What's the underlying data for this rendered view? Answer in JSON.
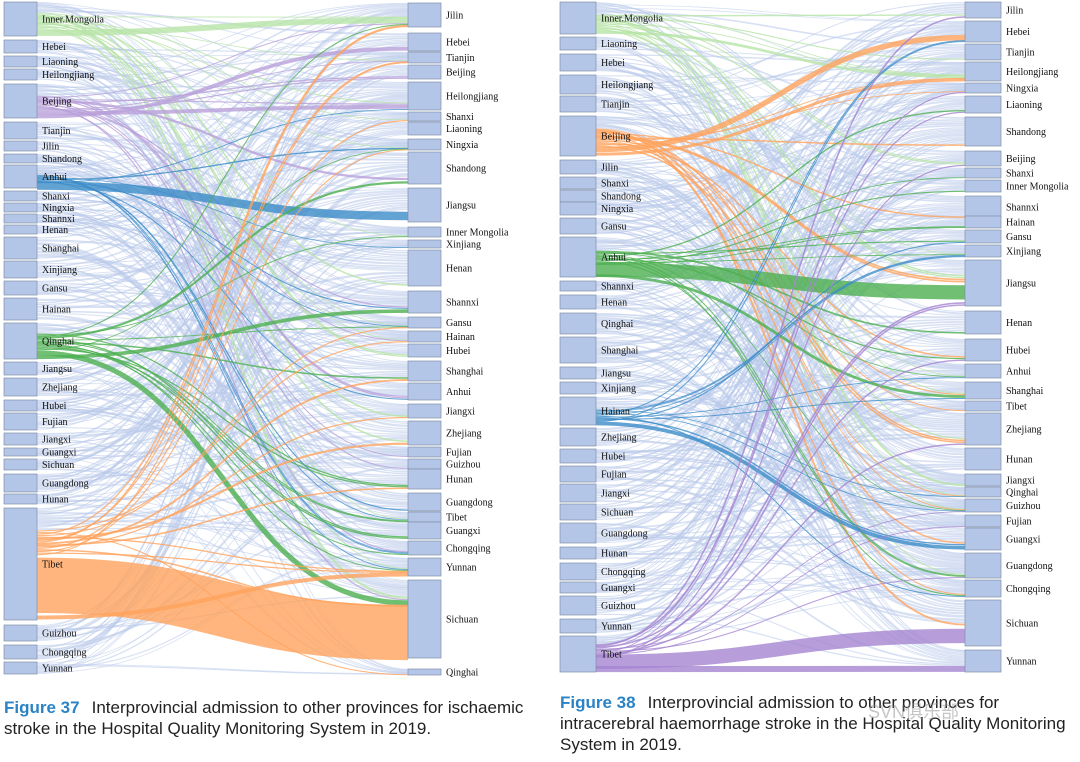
{
  "figure37": {
    "number": "Figure 37",
    "caption": "Interprovincial admission to other provinces for ischaemic stroke in the Hospital Quality Monitoring System in 2019.",
    "left_nodes": [
      "Inner.Mongolia",
      "Hebei",
      "Liaoning",
      "Heilongjiang",
      "Beijing",
      "Tianjin",
      "Jilin",
      "Shandong",
      "Anhui",
      "Shanxi",
      "Ningxia",
      "Shannxi",
      "Henan",
      "Shanghai",
      "Xinjiang",
      "Gansu",
      "Hainan",
      "Qinghai",
      "Jiangsu",
      "Zhejiang",
      "Hubei",
      "Fujian",
      "Jiangxi",
      "Guangxi",
      "Sichuan",
      "Guangdong",
      "Hunan",
      "Tibet",
      "Guizhou",
      "Chongqing",
      "Yunnan"
    ],
    "right_nodes": [
      "Jilin",
      "Hebei",
      "Tianjin",
      "Beijing",
      "Heilongjiang",
      "Shanxi",
      "Liaoning",
      "Ningxia",
      "Shandong",
      "Jiangsu",
      "Inner Mongolia",
      "Xinjiang",
      "Henan",
      "Shannxi",
      "Gansu",
      "Hainan",
      "Hubei",
      "Shanghai",
      "Anhui",
      "Jiangxi",
      "Zhejiang",
      "Fujian",
      "Guizhou",
      "Hunan",
      "Guangdong",
      "Tibet",
      "Guangxi",
      "Chongqing",
      "Yunnan",
      "Sichuan",
      "Qinghai"
    ]
  },
  "figure38": {
    "number": "Figure 38",
    "caption": "Interprovincial admission to other provinces for intracerebral haemorrhage stroke in the Hospital Quality Monitoring System in 2019.",
    "left_nodes": [
      "Inner.Mongolia",
      "Liaoning",
      "Hebei",
      "Heilongjiang",
      "Tianjin",
      "Beijing",
      "Jilin",
      "Shanxi",
      "Shandong",
      "Ningxia",
      "Gansu",
      "Anhui",
      "Shannxi",
      "Henan",
      "Qinghai",
      "Shanghai",
      "Jiangsu",
      "Xinjiang",
      "Hainan",
      "Zhejiang",
      "Hubei",
      "Fujian",
      "Jiangxi",
      "Sichuan",
      "Guangdong",
      "Hunan",
      "Chongqing",
      "Guangxi",
      "Guizhou",
      "Yunnan",
      "Tibet"
    ],
    "right_nodes": [
      "Jilin",
      "Hebei",
      "Tianjin",
      "Heilongjiang",
      "Ningxia",
      "Liaoning",
      "Shandong",
      "Beijing",
      "Shanxi",
      "Inner Mongolia",
      "Shannxi",
      "Hainan",
      "Gansu",
      "Xinjiang",
      "Jiangsu",
      "Henan",
      "Hubei",
      "Anhui",
      "Shanghai",
      "Tibet",
      "Zhejiang",
      "Hunan",
      "Jiangxi",
      "Qinghai",
      "Guizhou",
      "Fujian",
      "Guangxi",
      "Guangdong",
      "Chongqing",
      "Sichuan",
      "Yunnan"
    ]
  },
  "colors": {
    "node_fill": "#b4c6e7",
    "node_stroke": "#7f8fa6",
    "link_default": "#b8c9ea",
    "inner_mongolia": "#b7e3a6",
    "beijing": "#b9a0d9",
    "anhui": "#3c8cc8",
    "qinghai": "#4caf50",
    "tibet_37": "#ffa35c",
    "beijing_38": "#ffa35c",
    "anhui_38": "#4caf50",
    "hainan_38": "#3c8cc8",
    "tibet_38": "#a585d1",
    "caption_label": "#2a83c6"
  },
  "watermark": "SVN俱乐部"
}
